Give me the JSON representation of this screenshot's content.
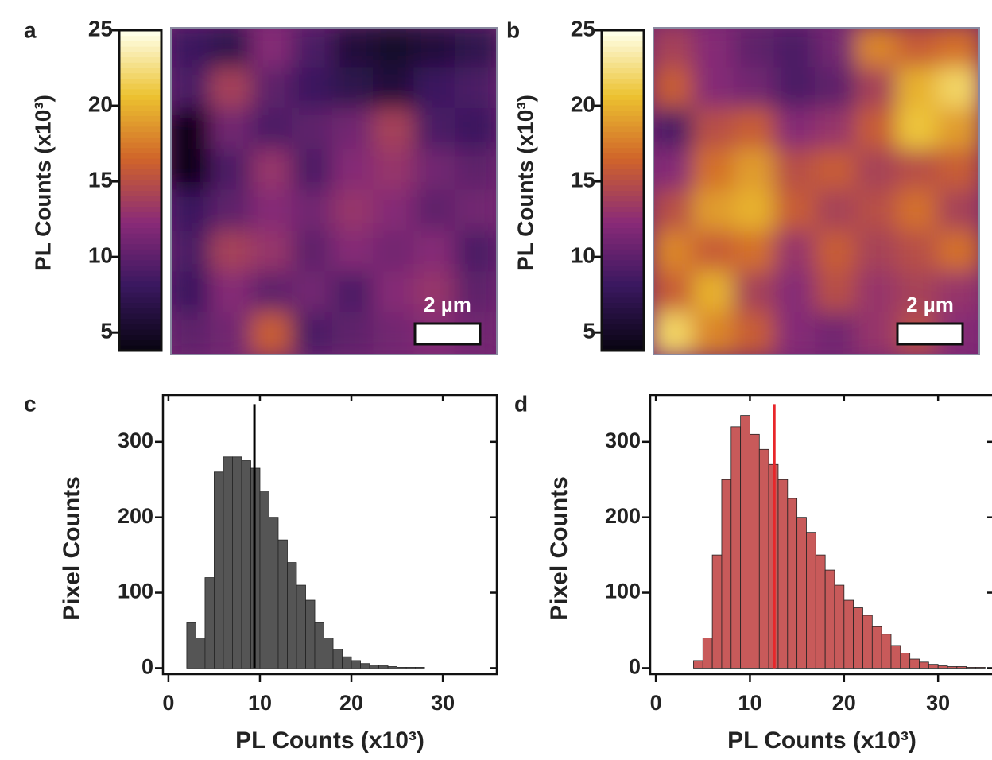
{
  "chart_data": [
    {
      "type": "heatmap",
      "panel_label": "a",
      "colorbar_label": "PL Counts (x10³)",
      "clim": [
        3.8,
        25
      ],
      "cticks": [
        5,
        10,
        15,
        20,
        25
      ],
      "colormap": [
        "#0a0514",
        "#3a1860",
        "#8a2a78",
        "#d0642a",
        "#ecc230",
        "#ffffe6"
      ],
      "scale_bar_label": "2 µm",
      "values": [
        [
          8,
          7,
          12,
          9,
          6,
          5,
          6,
          7
        ],
        [
          9,
          14,
          10,
          8,
          7,
          6,
          8,
          9
        ],
        [
          4,
          11,
          9,
          10,
          11,
          14,
          9,
          8
        ],
        [
          4,
          9,
          13,
          9,
          12,
          13,
          11,
          10
        ],
        [
          8,
          10,
          12,
          11,
          13,
          12,
          10,
          11
        ],
        [
          9,
          14,
          13,
          10,
          12,
          11,
          12,
          9
        ],
        [
          8,
          12,
          10,
          11,
          9,
          12,
          13,
          10
        ],
        [
          10,
          11,
          16,
          9,
          10,
          11,
          12,
          11
        ]
      ]
    },
    {
      "type": "heatmap",
      "panel_label": "b",
      "colorbar_label": "PL Counts (x10³)",
      "clim": [
        3.8,
        25
      ],
      "cticks": [
        5,
        10,
        15,
        20,
        25
      ],
      "colormap": [
        "#0a0514",
        "#3a1860",
        "#8a2a78",
        "#d0642a",
        "#ecc230",
        "#ffffe6"
      ],
      "scale_bar_label": "2 µm",
      "values": [
        [
          14,
          12,
          10,
          9,
          11,
          18,
          16,
          17
        ],
        [
          16,
          12,
          11,
          9,
          10,
          14,
          20,
          22
        ],
        [
          9,
          15,
          16,
          12,
          13,
          16,
          21,
          19
        ],
        [
          12,
          17,
          19,
          15,
          16,
          14,
          15,
          16
        ],
        [
          15,
          19,
          20,
          16,
          14,
          15,
          17,
          14
        ],
        [
          18,
          16,
          17,
          13,
          16,
          14,
          15,
          17
        ],
        [
          16,
          20,
          14,
          12,
          15,
          13,
          14,
          13
        ],
        [
          22,
          18,
          16,
          12,
          11,
          13,
          15,
          12
        ]
      ]
    },
    {
      "type": "histogram",
      "panel_label": "c",
      "x_label": "PL Counts (x10³)",
      "y_label": "Pixel Counts",
      "color": "#555555",
      "bins": [
        2,
        3,
        4,
        5,
        6,
        7,
        8,
        9,
        10,
        11,
        12,
        13,
        14,
        15,
        16,
        17,
        18,
        19,
        20,
        21,
        22,
        23,
        24,
        25,
        26,
        27,
        28
      ],
      "values": [
        60,
        40,
        120,
        260,
        280,
        280,
        275,
        265,
        235,
        200,
        170,
        140,
        110,
        90,
        60,
        40,
        25,
        15,
        10,
        6,
        4,
        3,
        2,
        1,
        1,
        1
      ],
      "vline": 9.4,
      "vline_color": "#000000",
      "xlim": [
        -0.6,
        35.9
      ],
      "xticks": [
        0,
        10,
        20,
        30
      ],
      "ylim": [
        -8,
        362
      ],
      "yticks": [
        0,
        100,
        200,
        300
      ]
    },
    {
      "type": "histogram",
      "panel_label": "d",
      "x_label": "PL Counts (x10³)",
      "y_label": "Pixel Counts",
      "color": "#c85a5a",
      "bins": [
        4,
        5,
        6,
        7,
        8,
        9,
        10,
        11,
        12,
        13,
        14,
        15,
        16,
        17,
        18,
        19,
        20,
        21,
        22,
        23,
        24,
        25,
        26,
        27,
        28,
        29,
        30,
        31,
        32,
        33,
        34,
        35
      ],
      "values": [
        10,
        40,
        150,
        250,
        320,
        335,
        310,
        290,
        270,
        250,
        225,
        200,
        180,
        150,
        130,
        110,
        90,
        80,
        70,
        55,
        45,
        30,
        20,
        12,
        8,
        5,
        3,
        2,
        2,
        1,
        1
      ],
      "vline": 12.6,
      "vline_color": "#e8262a",
      "xlim": [
        -0.6,
        35.9
      ],
      "xticks": [
        0,
        10,
        20,
        30
      ],
      "ylim": [
        -8,
        362
      ],
      "yticks": [
        0,
        100,
        200,
        300
      ]
    }
  ]
}
